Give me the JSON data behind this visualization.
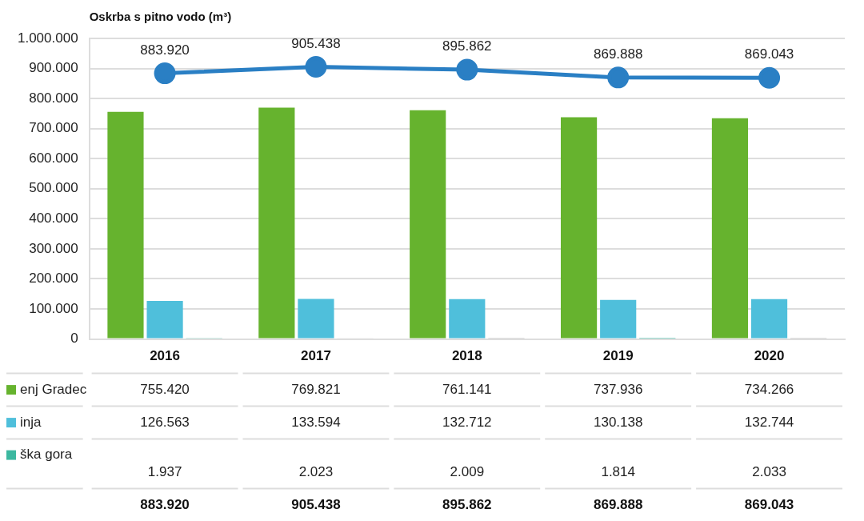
{
  "chart_data": {
    "type": "bar",
    "title": "Oskrba s pitno vodo (m³)",
    "categories": [
      "2016",
      "2017",
      "2018",
      "2019",
      "2020"
    ],
    "ylim": [
      0,
      1000000
    ],
    "yticks": [
      {
        "value": 0,
        "label": "0"
      },
      {
        "value": 100000,
        "label": "100.000"
      },
      {
        "value": 200000,
        "label": "200.000"
      },
      {
        "value": 300000,
        "label": "300.000"
      },
      {
        "value": 400000,
        "label": "400.000"
      },
      {
        "value": 500000,
        "label": "500.000"
      },
      {
        "value": 600000,
        "label": "600.000"
      },
      {
        "value": 700000,
        "label": "700.000"
      },
      {
        "value": 800000,
        "label": "800.000"
      },
      {
        "value": 900000,
        "label": "900.000"
      },
      {
        "value": 1000000,
        "label": "1.000.000"
      }
    ],
    "grid": "y",
    "marker": "circle",
    "legend": "bottom left",
    "series": [
      {
        "name": "enj Gradec",
        "color": "#66b32e",
        "values": [
          755420,
          769821,
          761141,
          737936,
          734266
        ],
        "value_labels": [
          "755.420",
          "769.821",
          "761.141",
          "737.936",
          "734.266"
        ]
      },
      {
        "name": "inja",
        "color": "#4fbfdb",
        "values": [
          126563,
          133594,
          132712,
          130138,
          132744
        ],
        "value_labels": [
          "126.563",
          "133.594",
          "132.712",
          "130.138",
          "132.744"
        ]
      },
      {
        "name": "ška gora",
        "colors": [
          "#3cb8a0",
          "#dddddd",
          "#888888",
          "#2cb5a0",
          "#888888"
        ],
        "values": [
          1937,
          2023,
          2009,
          1814,
          2033
        ],
        "value_labels": [
          "1.937",
          "2.023",
          "2.009",
          "1.814",
          "2.033"
        ]
      },
      {
        "type": "line",
        "color": "#2a7fc4",
        "values": [
          883920,
          905438,
          895862,
          869888,
          869043
        ],
        "value_labels": [
          "883.920",
          "905.438",
          "895.862",
          "869.888",
          "869.043"
        ]
      }
    ]
  }
}
